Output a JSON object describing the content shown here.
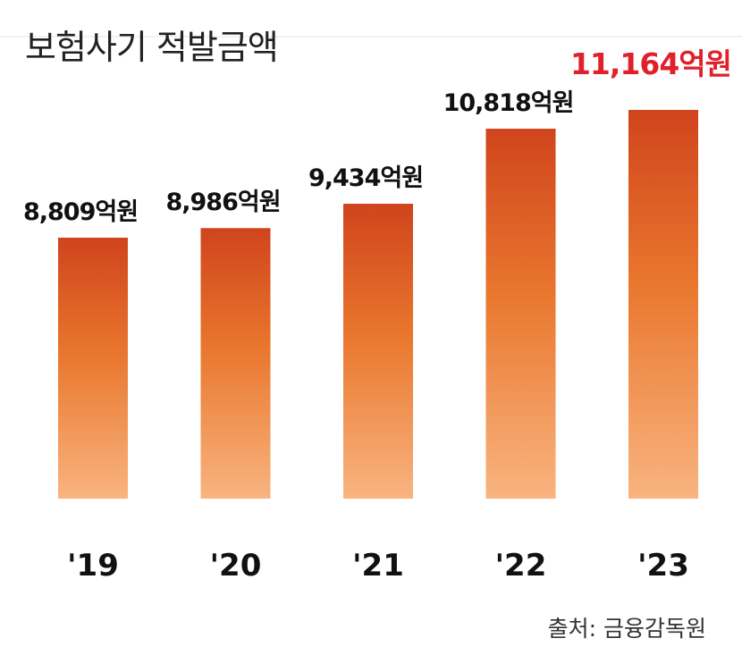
{
  "chart_data": {
    "type": "bar",
    "title": "보험사기 적발금액",
    "categories": [
      "'19",
      "'20",
      "'21",
      "'22",
      "'23"
    ],
    "values": [
      8809,
      8986,
      9434,
      10818,
      11164
    ],
    "value_labels": [
      "8,809억원",
      "8,986억원",
      "9,434억원",
      "10,818억원",
      "11,164억원"
    ],
    "unit": "억원",
    "highlight_index": 4,
    "xlabel": "",
    "ylabel": "",
    "ylim": [
      4000,
      11164
    ],
    "grid": false,
    "source": "출처: 금융감독원",
    "colors": {
      "bar_top": "#d0441c",
      "bar_mid": "#e9772e",
      "bar_bottom": "#f9b480",
      "highlight_text": "#e0202a"
    }
  }
}
